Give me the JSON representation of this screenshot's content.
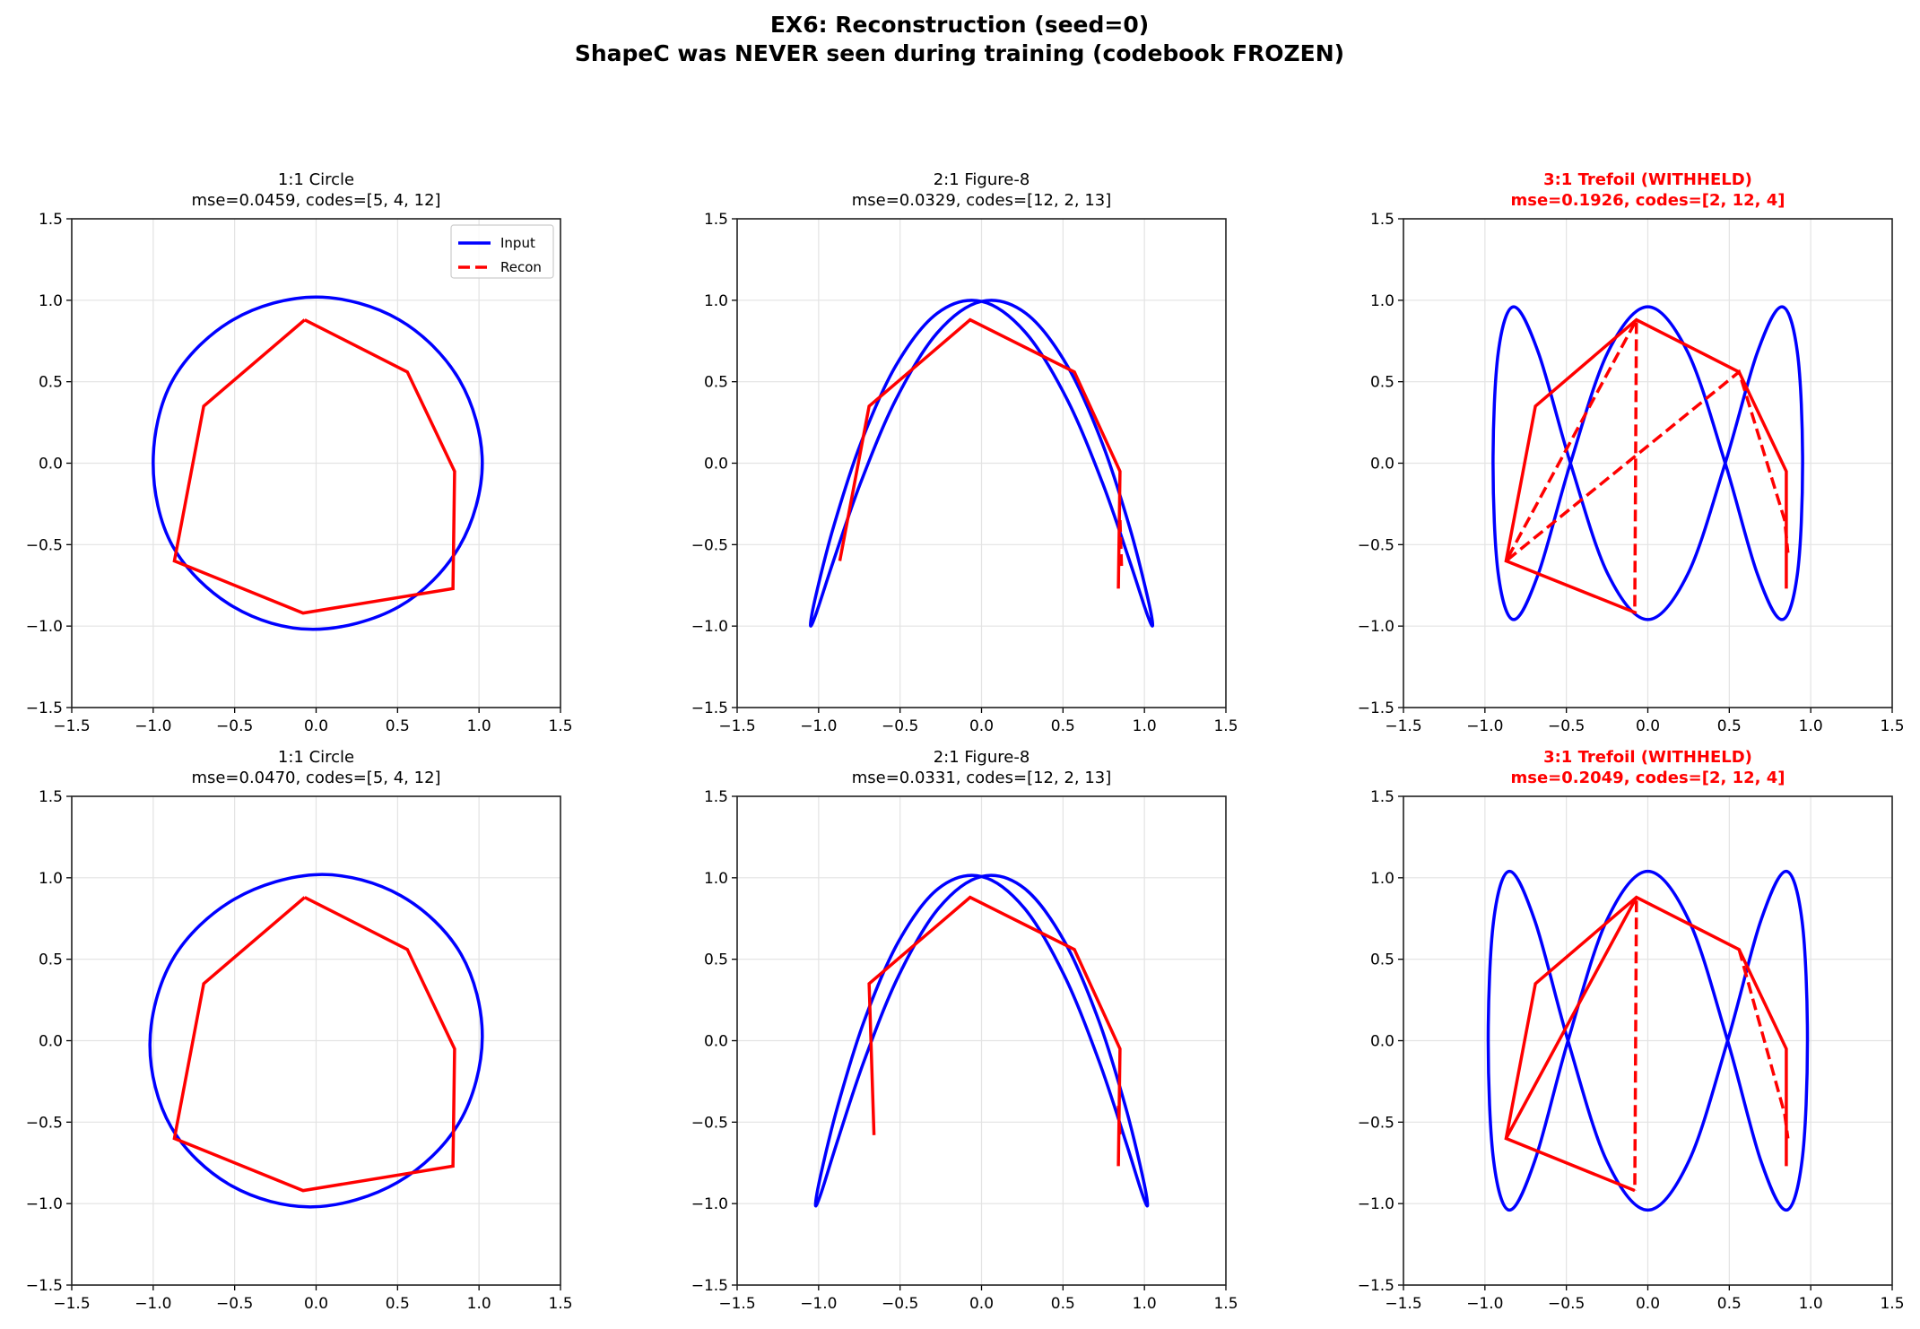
{
  "chart_data": {
    "suptitle": [
      "EX6: Reconstruction (seed=0)",
      "ShapeC was NEVER seen during training (codebook FROZEN)"
    ],
    "colors": {
      "input": "#0000ff",
      "recon": "#ff0000",
      "withheld_title": "#ff0000"
    },
    "legend": {
      "placement": "upper-right",
      "entries": [
        {
          "label": "Input",
          "style": "solid",
          "color": "#0000ff"
        },
        {
          "label": "Recon",
          "style": "dashed",
          "color": "#ff0000"
        }
      ]
    },
    "grid": true,
    "panels": [
      {
        "type": "line",
        "title": [
          "1:1 Circle",
          "mse=0.0459, codes=[5, 4, 12]"
        ],
        "withheld": false,
        "legend": true,
        "xlim": [
          -1.5,
          1.5
        ],
        "ylim": [
          -1.5,
          1.5
        ],
        "xticks": [
          "−1.5",
          "−1.0",
          "−0.5",
          "0.0",
          "0.5",
          "1.0",
          "1.5"
        ],
        "yticks": [
          "−1.5",
          "−1.0",
          "−0.5",
          "0.0",
          "0.5",
          "1.0",
          "1.5"
        ],
        "input": {
          "closed": true,
          "x": [
            1.02,
            0.88,
            0.51,
            0,
            -0.51,
            -0.88,
            -1.0,
            -0.88,
            -0.51,
            -0.02,
            0.51,
            0.88
          ],
          "y": [
            0,
            0.51,
            0.88,
            1.02,
            0.88,
            0.51,
            0,
            -0.51,
            -0.88,
            -1.02,
            -0.88,
            -0.51
          ]
        },
        "recon_solid": [
          {
            "x": [
              -0.07,
              0.56,
              0.85,
              0.84,
              -0.08,
              -0.87,
              -0.69,
              -0.07
            ],
            "y": [
              0.88,
              0.56,
              -0.05,
              -0.77,
              -0.92,
              -0.6,
              0.35,
              0.88
            ]
          }
        ],
        "recon_dashed": []
      },
      {
        "type": "line",
        "title": [
          "2:1 Figure-8",
          "mse=0.0329, codes=[12, 2, 13]"
        ],
        "withheld": false,
        "legend": false,
        "xlim": [
          -1.5,
          1.5
        ],
        "ylim": [
          -1.5,
          1.5
        ],
        "xticks": [
          "−1.5",
          "−1.0",
          "−0.5",
          "0.0",
          "0.5",
          "1.0",
          "1.5"
        ],
        "yticks": [
          "−1.5",
          "−1.0",
          "−0.5",
          "0.0",
          "0.5",
          "1.0",
          "1.5"
        ],
        "input": {
          "closed": true,
          "x": [
            0,
            0.272,
            0.525,
            0.742,
            0.909,
            1.014,
            1.05,
            1.014,
            0.909,
            0.742,
            0.525,
            0.272,
            0,
            -0.272,
            -0.525,
            -0.742,
            -0.909,
            -1.014,
            -1.05,
            -1.014,
            -0.909,
            -0.742,
            -0.525,
            -0.272
          ],
          "y": [
            0.993,
            0.8,
            0.392,
            -0.12,
            -0.6,
            -0.92,
            -0.993,
            -0.8,
            -0.392,
            0.12,
            0.6,
            0.92,
            0.993,
            0.8,
            0.392,
            -0.12,
            -0.6,
            -0.92,
            -0.993,
            -0.8,
            -0.392,
            0.12,
            0.6,
            0.92
          ]
        },
        "recon_solid": [
          {
            "x": [
              -0.87,
              -0.69,
              -0.07,
              0.57,
              0.85,
              0.84
            ],
            "y": [
              -0.6,
              0.35,
              0.88,
              0.56,
              -0.05,
              -0.77
            ]
          }
        ],
        "recon_dashed": [
          {
            "x": [
              0.85,
              0.86
            ],
            "y": [
              -0.35,
              -0.65
            ]
          }
        ]
      },
      {
        "type": "line",
        "title": [
          "3:1 Trefoil (WITHHELD)",
          "mse=0.1926, codes=[2, 12, 4]"
        ],
        "withheld": true,
        "legend": false,
        "xlim": [
          -1.5,
          1.5
        ],
        "ylim": [
          -1.5,
          1.5
        ],
        "xticks": [
          "−1.5",
          "−1.0",
          "−0.5",
          "0.0",
          "0.5",
          "1.0",
          "1.5"
        ],
        "yticks": [
          "−1.5",
          "−1.0",
          "−0.5",
          "0.0",
          "0.5",
          "1.0",
          "1.5"
        ],
        "input": {
          "closed": true,
          "x": [
            0,
            0.246,
            0.475,
            0.672,
            0.823,
            0.918,
            0.95,
            0.918,
            0.823,
            0.672,
            0.475,
            0.246,
            0,
            -0.246,
            -0.475,
            -0.672,
            -0.823,
            -0.918,
            -0.95,
            -0.918,
            -0.823,
            -0.672,
            -0.475,
            -0.246
          ],
          "y": [
            0.96,
            0.679,
            0,
            -0.679,
            -0.96,
            -0.679,
            0,
            0.679,
            0.96,
            0.679,
            0,
            -0.679,
            -0.96,
            -0.679,
            0,
            0.679,
            0.96,
            0.679,
            0,
            -0.679,
            -0.96,
            -0.679,
            0,
            0.679
          ]
        },
        "recon_solid": [
          {
            "x": [
              -0.07,
              -0.87,
              -0.69,
              -0.07,
              0.56,
              0.85,
              0.85
            ],
            "y": [
              -0.92,
              -0.6,
              0.35,
              0.88,
              0.56,
              -0.05,
              -0.77
            ]
          }
        ],
        "recon_dashed": [
          {
            "x": [
              -0.08,
              -0.07,
              -0.87,
              0.56,
              0.84,
              0.86
            ],
            "y": [
              -0.88,
              0.88,
              -0.6,
              0.56,
              -0.35,
              -0.55
            ]
          }
        ]
      },
      {
        "type": "line",
        "title": [
          "1:1 Circle",
          "mse=0.0470, codes=[5, 4, 12]"
        ],
        "withheld": false,
        "legend": false,
        "xlim": [
          -1.5,
          1.5
        ],
        "ylim": [
          -1.5,
          1.5
        ],
        "xticks": [
          "−1.5",
          "−1.0",
          "−0.5",
          "0.0",
          "0.5",
          "1.0",
          "1.5"
        ],
        "yticks": [
          "−1.5",
          "−1.0",
          "−0.5",
          "0.0",
          "0.5",
          "1.0",
          "1.5"
        ],
        "input": {
          "closed": true,
          "x": [
            1.02,
            0.89,
            0.52,
            0.02,
            -0.5,
            -0.88,
            -1.02,
            -0.89,
            -0.52,
            -0.02,
            0.5,
            0.88
          ],
          "y": [
            0.02,
            0.53,
            0.89,
            1.02,
            0.87,
            0.5,
            -0.02,
            -0.53,
            -0.89,
            -1.02,
            -0.87,
            -0.5
          ]
        },
        "recon_solid": [
          {
            "x": [
              -0.07,
              0.56,
              0.85,
              0.84,
              -0.08,
              -0.87,
              -0.69,
              -0.07
            ],
            "y": [
              0.88,
              0.56,
              -0.05,
              -0.77,
              -0.92,
              -0.6,
              0.35,
              0.88
            ]
          }
        ],
        "recon_dashed": []
      },
      {
        "type": "line",
        "title": [
          "2:1 Figure-8",
          "mse=0.0331, codes=[12, 2, 13]"
        ],
        "withheld": false,
        "legend": false,
        "xlim": [
          -1.5,
          1.5
        ],
        "ylim": [
          -1.5,
          1.5
        ],
        "xticks": [
          "−1.5",
          "−1.0",
          "−0.5",
          "0.0",
          "0.5",
          "1.0",
          "1.5"
        ],
        "yticks": [
          "−1.5",
          "−1.0",
          "−0.5",
          "0.0",
          "0.5",
          "1.0",
          "1.5"
        ],
        "input": {
          "closed": true,
          "x": [
            0,
            0.264,
            0.509,
            0.72,
            0.882,
            0.984,
            1.019,
            0.984,
            0.882,
            0.72,
            0.509,
            0.264,
            0,
            -0.264,
            -0.509,
            -0.72,
            -0.882,
            -0.984,
            -1.019,
            -0.984,
            -0.882,
            -0.72,
            -0.509,
            -0.264
          ],
          "y": [
            1.008,
            0.812,
            0.398,
            -0.122,
            -0.609,
            -0.934,
            -1.008,
            -0.812,
            -0.398,
            0.122,
            0.609,
            0.934,
            1.008,
            0.812,
            0.398,
            -0.122,
            -0.609,
            -0.934,
            -1.008,
            -0.812,
            -0.398,
            0.122,
            0.609,
            0.934
          ]
        },
        "recon_solid": [
          {
            "x": [
              -0.66,
              -0.69,
              -0.07,
              0.57,
              0.85,
              0.84
            ],
            "y": [
              -0.58,
              0.35,
              0.88,
              0.56,
              -0.05,
              -0.77
            ]
          }
        ],
        "recon_dashed": [
          {
            "x": [
              0.84,
              0.85
            ],
            "y": [
              -0.4,
              -0.6
            ]
          }
        ]
      },
      {
        "type": "line",
        "title": [
          "3:1 Trefoil (WITHHELD)",
          "mse=0.2049, codes=[2, 12, 4]"
        ],
        "withheld": true,
        "legend": false,
        "xlim": [
          -1.5,
          1.5
        ],
        "ylim": [
          -1.5,
          1.5
        ],
        "xticks": [
          "−1.5",
          "−1.0",
          "−0.5",
          "0.0",
          "0.5",
          "1.0",
          "1.5"
        ],
        "yticks": [
          "−1.5",
          "−1.0",
          "−0.5",
          "0.0",
          "0.5",
          "1.0",
          "1.5"
        ],
        "input": {
          "closed": true,
          "x": [
            0,
            0.254,
            0.49,
            0.693,
            0.849,
            0.947,
            0.98,
            0.947,
            0.849,
            0.693,
            0.49,
            0.254,
            0,
            -0.254,
            -0.49,
            -0.693,
            -0.849,
            -0.947,
            -0.98,
            -0.947,
            -0.849,
            -0.693,
            -0.49,
            -0.254
          ],
          "y": [
            1.04,
            0.735,
            0,
            -0.735,
            -1.04,
            -0.735,
            0,
            0.735,
            1.04,
            0.735,
            0,
            -0.735,
            -1.04,
            -0.735,
            0,
            0.735,
            1.04,
            0.735,
            0,
            -0.735,
            -1.04,
            -0.735,
            0,
            0.735
          ]
        },
        "recon_solid": [
          {
            "x": [
              -0.08,
              -0.87,
              -0.69,
              -0.07,
              0.56,
              0.85,
              0.85
            ],
            "y": [
              -0.92,
              -0.6,
              0.35,
              0.88,
              0.56,
              -0.05,
              -0.77
            ]
          },
          {
            "x": [
              -0.07,
              -0.87
            ],
            "y": [
              0.88,
              -0.6
            ]
          }
        ],
        "recon_dashed": [
          {
            "x": [
              -0.07,
              -0.08
            ],
            "y": [
              0.86,
              -0.92
            ]
          },
          {
            "x": [
              0.56,
              0.84,
              0.86
            ],
            "y": [
              0.56,
              -0.45,
              -0.6
            ]
          }
        ]
      }
    ]
  }
}
